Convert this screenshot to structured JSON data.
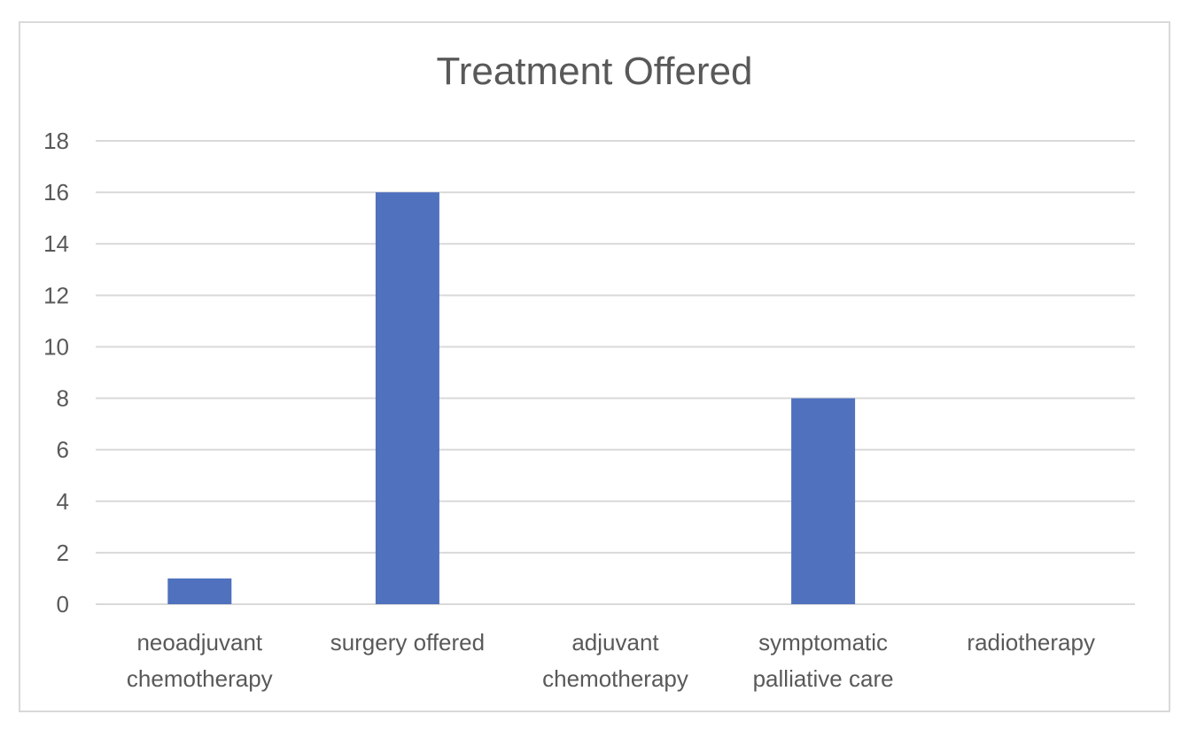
{
  "chart_data": {
    "type": "bar",
    "title": "Treatment Offered",
    "categories": [
      [
        "neoadjuvant",
        "chemotherapy"
      ],
      [
        "surgery offered"
      ],
      [
        "adjuvant",
        "chemotherapy"
      ],
      [
        "symptomatic",
        "palliative care"
      ],
      [
        "radiotherapy"
      ]
    ],
    "values": [
      1,
      16,
      0,
      8,
      0
    ],
    "ylim": [
      0,
      18
    ],
    "yticks": [
      0,
      2,
      4,
      6,
      8,
      10,
      12,
      14,
      16,
      18
    ],
    "grid": true,
    "bar_color": "#4f71be",
    "grid_color": "#d9d9d9",
    "text_color": "#595959"
  }
}
